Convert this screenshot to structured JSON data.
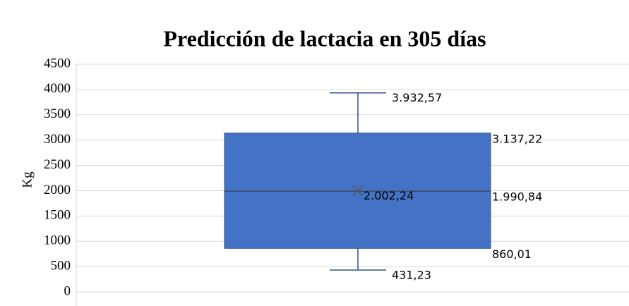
{
  "chart_data": {
    "type": "box",
    "title": "Predicción de lactacia en 305 días",
    "y_label": "Kg",
    "color": "#4472c4",
    "stats": {
      "min": 431.23,
      "q1": 860.01,
      "median": 1990.84,
      "q3": 3137.22,
      "max": 3932.57,
      "mean": 2002.24
    },
    "value_labels": {
      "min": "431,23",
      "q1": "860,01",
      "median": "1.990,84",
      "q3": "3.137,22",
      "max": "3.932,57",
      "mean": "2.002,24"
    },
    "ylim": [
      0,
      4500
    ],
    "yticks": [
      0,
      500,
      1000,
      1500,
      2000,
      2500,
      3000,
      3500,
      4000,
      4500
    ],
    "grid": true
  }
}
